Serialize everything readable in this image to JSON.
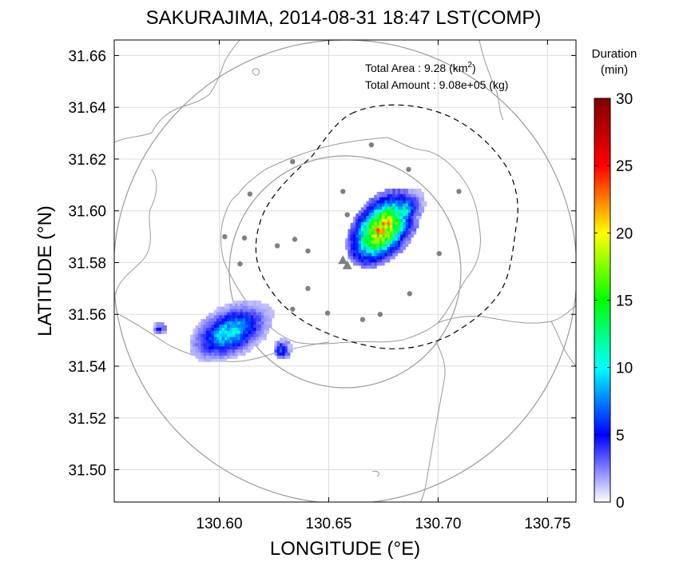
{
  "chart_data": {
    "type": "heatmap",
    "title": "SAKURAJIMA, 2014-08-31 18:47 LST(COMP)",
    "xlabel": "LONGITUDE (°E)",
    "ylabel": "LATITUDE (°N)",
    "xlim": [
      130.552,
      130.763
    ],
    "ylim": [
      31.4875,
      31.666
    ],
    "x_ticks": [
      "130.60",
      "130.65",
      "130.70",
      "130.75"
    ],
    "y_ticks": [
      "31.50",
      "31.52",
      "31.54",
      "31.56",
      "31.58",
      "31.60",
      "31.62",
      "31.64",
      "31.66"
    ],
    "grid": true,
    "stats": {
      "area_label": "Total Area",
      "area_sep": " : ",
      "area_value": "9.28",
      "area_unit_pre": " (km",
      "area_unit_sup": "2",
      "area_unit_post": ")",
      "amount_label": "Total Amount",
      "amount_sep": " : ",
      "amount_value": "9.08e+05",
      "amount_unit": " (kg)"
    },
    "colorbar": {
      "title_line1": "Duration",
      "title_line2": "(min)",
      "min": 0,
      "max": 30,
      "ticks": [
        "0",
        "5",
        "10",
        "15",
        "20",
        "25",
        "30"
      ]
    },
    "center": [
      130.658,
      31.58
    ],
    "vents": [
      [
        130.6565,
        31.581
      ],
      [
        130.6585,
        31.579
      ]
    ],
    "stations": [
      [
        130.6695,
        31.6255
      ],
      [
        130.6335,
        31.619
      ],
      [
        130.6865,
        31.616
      ],
      [
        130.614,
        31.6065
      ],
      [
        130.6565,
        31.6075
      ],
      [
        130.7095,
        31.6075
      ],
      [
        130.6585,
        31.5985
      ],
      [
        130.6345,
        31.589
      ],
      [
        130.6025,
        31.59
      ],
      [
        130.6115,
        31.5895
      ],
      [
        130.6265,
        31.5865
      ],
      [
        130.6405,
        31.5845
      ],
      [
        130.7005,
        31.5835
      ],
      [
        130.6095,
        31.5795
      ],
      [
        130.6405,
        31.57
      ],
      [
        130.687,
        31.568
      ],
      [
        130.6335,
        31.562
      ],
      [
        130.6495,
        31.5605
      ],
      [
        130.6735,
        31.56
      ],
      [
        130.6655,
        31.558
      ]
    ],
    "plumes": [
      {
        "cx": 130.675,
        "cy": 31.5935,
        "sx": 0.016,
        "sy": 0.01,
        "rot": 40,
        "peak": 21
      },
      {
        "cx": 130.684,
        "cy": 31.6,
        "sx": 0.009,
        "sy": 0.006,
        "rot": 35,
        "peak": 11
      },
      {
        "cx": 130.6055,
        "cy": 31.5535,
        "sx": 0.017,
        "sy": 0.0085,
        "rot": 20,
        "peak": 10
      },
      {
        "cx": 130.629,
        "cy": 31.5465,
        "sx": 0.0035,
        "sy": 0.0035,
        "rot": 0,
        "peak": 7
      },
      {
        "cx": 130.573,
        "cy": 31.5545,
        "sx": 0.003,
        "sy": 0.002,
        "rot": 0,
        "peak": 5
      }
    ]
  }
}
